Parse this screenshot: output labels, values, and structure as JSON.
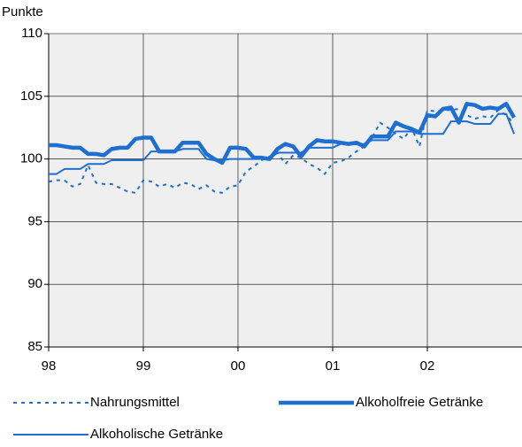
{
  "chart_data": {
    "type": "line",
    "y_label": "Punkte",
    "categories": [
      "98",
      null,
      null,
      null,
      null,
      null,
      null,
      null,
      null,
      null,
      null,
      null,
      "99",
      null,
      null,
      null,
      null,
      null,
      null,
      null,
      null,
      null,
      null,
      null,
      "00",
      null,
      null,
      null,
      null,
      null,
      null,
      null,
      null,
      null,
      null,
      null,
      "01",
      null,
      null,
      null,
      null,
      null,
      null,
      null,
      null,
      null,
      null,
      null,
      "02",
      null,
      null,
      null,
      null,
      null,
      null,
      null,
      null,
      null,
      null,
      null
    ],
    "series": [
      {
        "name": "Nahrungsmittel",
        "color": "#1f6fd1",
        "style": "dotted",
        "values": [
          98.2,
          98.3,
          98.3,
          97.8,
          98.0,
          99.5,
          98.1,
          98.0,
          98.0,
          97.7,
          97.4,
          97.3,
          98.3,
          98.2,
          97.8,
          98.0,
          97.7,
          98.1,
          98.0,
          97.6,
          97.9,
          97.4,
          97.3,
          97.8,
          97.9,
          99.0,
          99.4,
          99.9,
          100.2,
          100.5,
          99.6,
          100.3,
          100.1,
          99.6,
          99.3,
          98.8,
          99.7,
          99.8,
          100.1,
          100.6,
          101.0,
          101.7,
          102.9,
          102.5,
          102.0,
          101.6,
          102.5,
          101.0,
          103.9,
          103.8,
          103.9,
          103.9,
          104.0,
          103.5,
          103.2,
          103.4,
          103.3,
          103.9,
          103.5,
          102.8
        ]
      },
      {
        "name": "Alkoholfreie Getränke",
        "color": "#1f6fd1",
        "style": "bold",
        "values": [
          101.1,
          101.1,
          101.0,
          100.9,
          100.9,
          100.4,
          100.4,
          100.3,
          100.8,
          100.9,
          100.9,
          101.6,
          101.7,
          101.7,
          100.6,
          100.6,
          100.6,
          101.3,
          101.3,
          101.3,
          100.4,
          100.0,
          99.7,
          100.9,
          100.9,
          100.8,
          100.1,
          100.1,
          100.0,
          100.8,
          101.2,
          101.0,
          100.2,
          101.0,
          101.5,
          101.4,
          101.4,
          101.3,
          101.2,
          101.3,
          101.0,
          101.8,
          101.8,
          101.8,
          102.9,
          102.6,
          102.4,
          102.1,
          103.5,
          103.4,
          104.0,
          104.1,
          102.9,
          104.4,
          104.3,
          104.0,
          104.1,
          104.0,
          104.4,
          103.3
        ]
      },
      {
        "name": "Alkoholische Getränke",
        "color": "#1f6fd1",
        "style": "solid",
        "values": [
          98.8,
          98.8,
          99.2,
          99.2,
          99.2,
          99.6,
          99.6,
          99.6,
          99.9,
          99.9,
          99.9,
          99.9,
          99.9,
          100.6,
          100.6,
          100.6,
          100.6,
          100.8,
          100.8,
          100.8,
          100.0,
          99.9,
          99.9,
          100.0,
          100.0,
          100.0,
          100.0,
          100.0,
          100.0,
          100.5,
          100.5,
          100.5,
          100.5,
          100.9,
          100.9,
          100.9,
          100.9,
          101.2,
          101.2,
          101.2,
          101.2,
          101.5,
          101.5,
          101.5,
          102.2,
          102.2,
          102.2,
          102.0,
          102.0,
          102.0,
          102.0,
          103.0,
          103.0,
          103.0,
          102.8,
          102.8,
          102.8,
          103.6,
          103.6,
          102.0
        ]
      }
    ],
    "ylim": [
      85,
      110
    ],
    "yticks": [
      85,
      90,
      95,
      100,
      105,
      110
    ],
    "grid": true
  }
}
